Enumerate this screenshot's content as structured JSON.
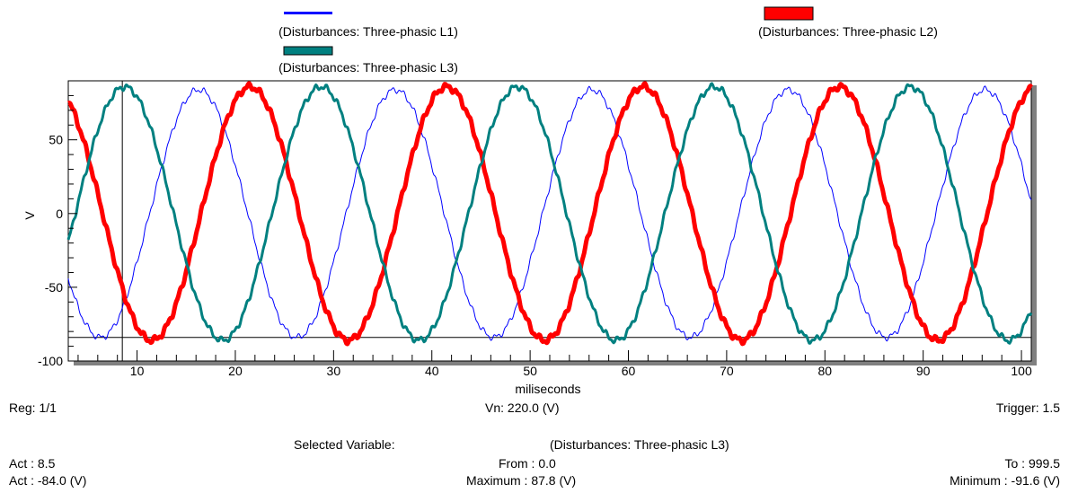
{
  "chart_data": {
    "type": "line",
    "xlabel": "miliseconds",
    "ylabel": "V",
    "xlim": [
      3,
      101
    ],
    "ylim": [
      -100,
      90
    ],
    "x_ticks": [
      10,
      20,
      30,
      40,
      50,
      60,
      70,
      80,
      90,
      100
    ],
    "y_ticks": [
      50,
      0,
      -50,
      -100
    ],
    "cursor_x": 8.5,
    "cursor_y": -84.0,
    "period_ms": 20,
    "series": [
      {
        "name": "(Disturbances: Three-phasic L1)",
        "color": "#0000ff",
        "amplitude": 84,
        "phase_deg": -203,
        "style": "thin"
      },
      {
        "name": "(Disturbances: Three-phasic L2)",
        "color": "#ff0000",
        "amplitude": 86,
        "phase_deg": 63,
        "style": "thick"
      },
      {
        "name": "(Disturbances: Three-phasic L3)",
        "color": "#008080",
        "amplitude": 86,
        "phase_deg": -67,
        "style": "medium"
      }
    ]
  },
  "info": {
    "reg": "Reg: 1/1",
    "vn": "Vn: 220.0 (V)",
    "trigger": "Trigger: 1.5",
    "selected_label": "Selected Variable:",
    "selected_value": "(Disturbances: Three-phasic L3)",
    "act_x": "Act : 8.5",
    "act_y": "Act : -84.0 (V)",
    "from": "From : 0.0",
    "to": "To : 999.5",
    "maximum": "Maximum : 87.8 (V)",
    "minimum": "Minimum : -91.6 (V)"
  }
}
